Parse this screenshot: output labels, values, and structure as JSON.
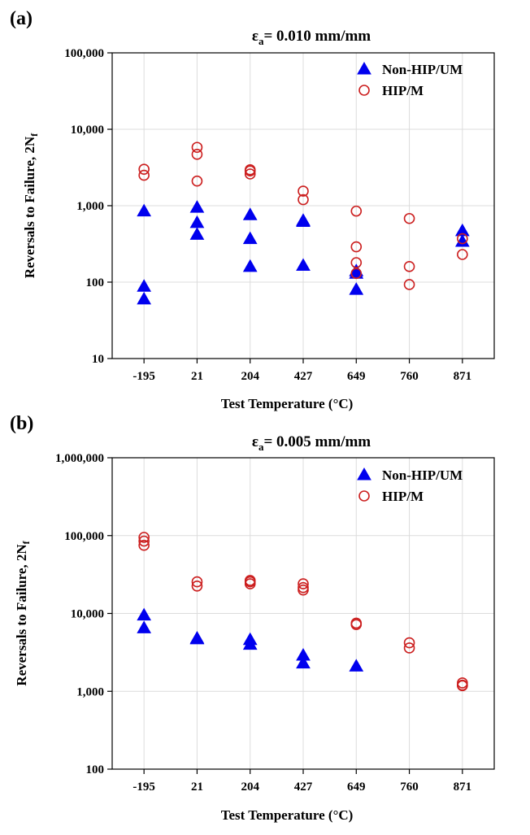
{
  "colors": {
    "non_hip": "#0000ee",
    "hip": "#cc1f1f",
    "grid": "#dcdcdc"
  },
  "chart_data": [
    {
      "panel": "(a)",
      "type": "scatter",
      "title_main": "ε",
      "title_sub": "a",
      "title_rest": "= 0.010 mm/mm",
      "xlabel": "Test Temperature (°C)",
      "ylabel_main": "Reversals to Failure, 2N",
      "ylabel_sub": "f",
      "categories": [
        "-195",
        "21",
        "204",
        "427",
        "649",
        "760",
        "871"
      ],
      "yscale": "log",
      "ylim": [
        10,
        100000
      ],
      "yticks": [
        10,
        100,
        1000,
        10000,
        100000
      ],
      "ytick_labels": [
        "10",
        "100",
        "1,000",
        "10,000",
        "100,000"
      ],
      "grid": true,
      "legend_position": "top-right",
      "series": [
        {
          "name": "Non-HIP/UM",
          "marker": "triangle-filled",
          "points": [
            [
              "-195",
              850
            ],
            [
              "-195",
              88
            ],
            [
              "-195",
              60
            ],
            [
              "21",
              950
            ],
            [
              "21",
              600
            ],
            [
              "21",
              420
            ],
            [
              "204",
              760
            ],
            [
              "204",
              370
            ],
            [
              "204",
              160
            ],
            [
              "427",
              640
            ],
            [
              "427",
              620
            ],
            [
              "427",
              165
            ],
            [
              "649",
              140
            ],
            [
              "649",
              130
            ],
            [
              "649",
              80
            ],
            [
              "871",
              470
            ],
            [
              "871",
              340
            ]
          ]
        },
        {
          "name": "HIP/M",
          "marker": "circle-open",
          "points": [
            [
              "-195",
              3000
            ],
            [
              "-195",
              2500
            ],
            [
              "21",
              5800
            ],
            [
              "21",
              4700
            ],
            [
              "21",
              2100
            ],
            [
              "204",
              2950
            ],
            [
              "204",
              2850
            ],
            [
              "204",
              2600
            ],
            [
              "427",
              1550
            ],
            [
              "427",
              1200
            ],
            [
              "649",
              850
            ],
            [
              "649",
              290
            ],
            [
              "649",
              180
            ],
            [
              "649",
              130
            ],
            [
              "760",
              680
            ],
            [
              "760",
              160
            ],
            [
              "760",
              93
            ],
            [
              "871",
              370
            ],
            [
              "871",
              230
            ]
          ]
        }
      ]
    },
    {
      "panel": "(b)",
      "type": "scatter",
      "title_main": "ε",
      "title_sub": "a",
      "title_rest": "= 0.005 mm/mm",
      "xlabel": "Test Temperature (°C)",
      "ylabel_main": "Reversals to Failure, 2N",
      "ylabel_sub": "f",
      "categories": [
        "-195",
        "21",
        "204",
        "427",
        "649",
        "760",
        "871"
      ],
      "yscale": "log",
      "ylim": [
        100,
        1000000
      ],
      "yticks": [
        100,
        1000,
        10000,
        100000,
        1000000
      ],
      "ytick_labels": [
        "100",
        "1,000",
        "10,000",
        "100,000",
        "1,000,000"
      ],
      "grid": true,
      "legend_position": "top-right",
      "series": [
        {
          "name": "Non-HIP/UM",
          "marker": "triangle-filled",
          "points": [
            [
              "-195",
              9500
            ],
            [
              "-195",
              6500
            ],
            [
              "21",
              4800
            ],
            [
              "21",
              4700
            ],
            [
              "204",
              4600
            ],
            [
              "204",
              4000
            ],
            [
              "427",
              2900
            ],
            [
              "427",
              2300
            ],
            [
              "649",
              2100
            ]
          ]
        },
        {
          "name": "HIP/M",
          "marker": "circle-open",
          "points": [
            [
              "-195",
              95000
            ],
            [
              "-195",
              85000
            ],
            [
              "-195",
              75000
            ],
            [
              "21",
              25500
            ],
            [
              "21",
              22500
            ],
            [
              "204",
              26500
            ],
            [
              "204",
              25500
            ],
            [
              "204",
              24000
            ],
            [
              "427",
              24000
            ],
            [
              "427",
              21500
            ],
            [
              "427",
              20000
            ],
            [
              "649",
              7500
            ],
            [
              "649",
              7200
            ],
            [
              "760",
              4200
            ],
            [
              "760",
              3600
            ],
            [
              "871",
              1280
            ],
            [
              "871",
              1200
            ],
            [
              "871",
              1180
            ]
          ]
        }
      ]
    }
  ]
}
